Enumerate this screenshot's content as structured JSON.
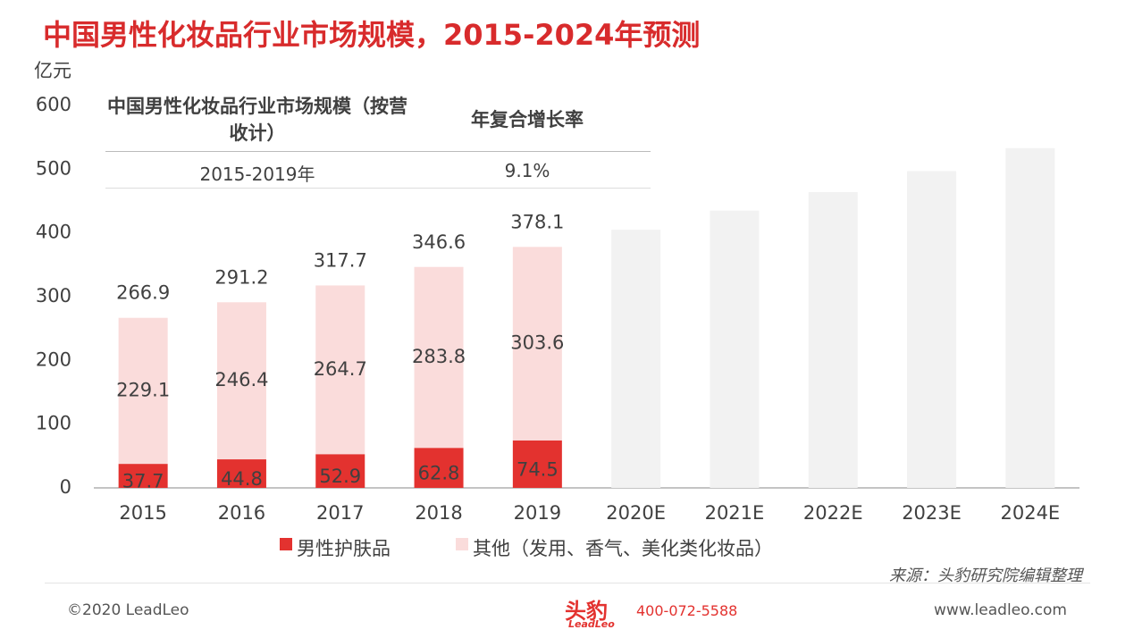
{
  "chart_data": {
    "type": "stacked_bar",
    "title": "中国男性化妆品行业市场规模，2015-2024年预测",
    "y_label": "亿元",
    "categories": [
      "2015",
      "2016",
      "2017",
      "2018",
      "2019",
      "2020E",
      "2021E",
      "2022E",
      "2023E",
      "2024E"
    ],
    "series": [
      {
        "name": "男性护肤品",
        "color": "#e3322f",
        "values": [
          37.7,
          44.8,
          52.9,
          62.8,
          74.5,
          null,
          null,
          null,
          null,
          null
        ]
      },
      {
        "name": "其他（发用、香气、美化类化妆品）",
        "color": "#fadcdb",
        "values": [
          229.1,
          246.4,
          264.7,
          283.8,
          303.6,
          null,
          null,
          null,
          null,
          null
        ]
      }
    ],
    "forecast": {
      "color": "#f2f2f2",
      "values": [
        null,
        null,
        null,
        null,
        null,
        405,
        435,
        464,
        497,
        533
      ]
    },
    "totals": [
      266.9,
      291.2,
      317.7,
      346.6,
      378.1,
      null,
      null,
      null,
      null,
      null
    ],
    "ylim": [
      0,
      600
    ],
    "yticks": [
      0,
      100,
      200,
      300,
      400,
      500,
      600
    ],
    "grid": false
  },
  "table": {
    "headers": [
      "中国男性化妆品行业市场规模（按营收计）",
      "年复合增长率"
    ],
    "rows": [
      [
        "2015-2019年",
        "9.1%"
      ]
    ]
  },
  "source": "来源：头豹研究院编辑整理",
  "footer": {
    "copyright": "©2020 LeadLeo",
    "logo": "头豹",
    "logo_sub": "LeadLeo",
    "phone": "400-072-5588",
    "url": "www.leadleo.com"
  }
}
